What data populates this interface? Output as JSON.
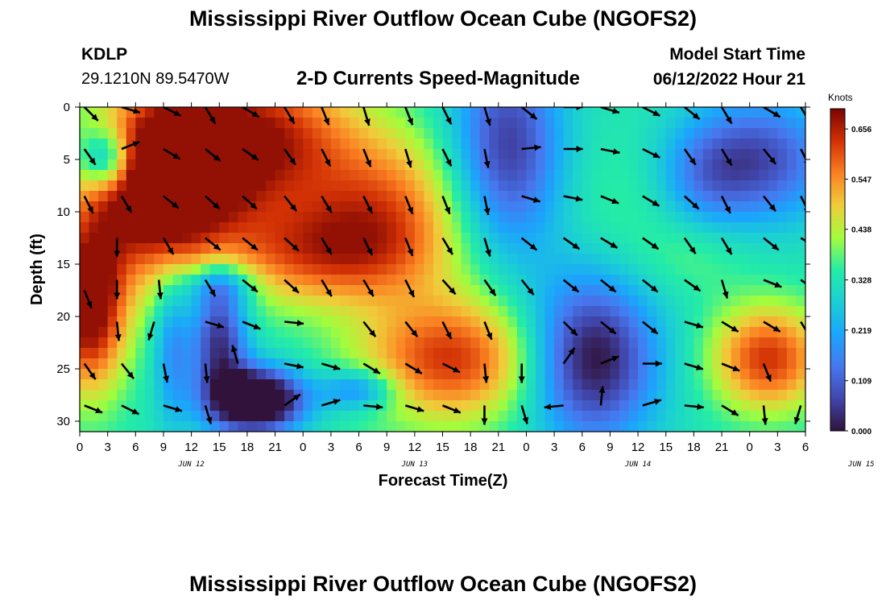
{
  "page": {
    "title": "Mississippi River Outflow Ocean Cube (NGOFS2)",
    "title_repeat": "Mississippi River Outflow Ocean Cube (NGOFS2)"
  },
  "station": {
    "id": "KDLP",
    "coords": "29.1210N  89.5470W"
  },
  "model": {
    "label": "Model Start Time",
    "value": "06/12/2022 Hour 21"
  },
  "chart_data": {
    "type": "heatmap",
    "title": "2-D Currents Speed-Magnitude",
    "xlabel": "Forecast Time(Z)",
    "ylabel": "Depth (ft)",
    "x_ticks": [
      "0",
      "3",
      "6",
      "9",
      "12",
      "15",
      "18",
      "21",
      "0",
      "3",
      "6",
      "9",
      "12",
      "15",
      "18",
      "21",
      "0",
      "3",
      "6",
      "9",
      "12",
      "15",
      "18",
      "21",
      "0",
      "3",
      "6"
    ],
    "date_labels": [
      {
        "label": "JUN 12",
        "x_hours": 12
      },
      {
        "label": "JUN 13",
        "x_hours": 36
      },
      {
        "label": "JUN 14",
        "x_hours": 60
      },
      {
        "label": "JUN 15",
        "x_hours": 84
      }
    ],
    "x_range_hours": [
      0,
      78
    ],
    "y_ticks": [
      "0",
      "5",
      "10",
      "15",
      "20",
      "25",
      "30"
    ],
    "ylim": [
      0,
      31
    ],
    "colorbar": {
      "unit": "Knots",
      "ticks": [
        "0.656",
        "0.547",
        "0.438",
        "0.328",
        "0.219",
        "0.109",
        "0.000"
      ],
      "range": [
        0.0,
        0.7
      ]
    },
    "speed_blobs": [
      {
        "h": 8,
        "d": 9,
        "rh": 8,
        "rd": 8,
        "v": 0.28
      },
      {
        "h": 1,
        "d": 19,
        "rh": 4,
        "rd": 8,
        "v": 0.4
      },
      {
        "h": 10,
        "d": 5,
        "rh": 8,
        "rd": 7,
        "v": 0.3
      },
      {
        "h": 20,
        "d": 3,
        "rh": 10,
        "rd": 7,
        "v": 0.3
      },
      {
        "h": 26,
        "d": 14,
        "rh": 12,
        "rd": 5,
        "v": 0.25
      },
      {
        "h": 40,
        "d": 24,
        "rh": 10,
        "rd": 6,
        "v": 0.3
      },
      {
        "h": 33,
        "d": 9,
        "rh": 9,
        "rd": 7,
        "v": 0.2
      },
      {
        "h": 3,
        "d": 5,
        "rh": 3,
        "rd": 3,
        "v": -0.3
      },
      {
        "h": 15,
        "d": 22,
        "rh": 3,
        "rd": 6,
        "v": -0.3
      },
      {
        "h": 19,
        "d": 28,
        "rh": 5,
        "rd": 3,
        "v": -0.5
      },
      {
        "h": 15,
        "d": 17,
        "rh": 4,
        "rd": 2,
        "v": -0.15
      },
      {
        "h": 10,
        "d": 23,
        "rh": 2,
        "rd": 7,
        "v": -0.15
      },
      {
        "h": 30,
        "d": 27,
        "rh": 4,
        "rd": 2,
        "v": -0.2
      },
      {
        "h": 46,
        "d": 4,
        "rh": 6,
        "rd": 10,
        "v": -0.28
      },
      {
        "h": 55,
        "d": 24,
        "rh": 7,
        "rd": 8,
        "v": -0.35
      },
      {
        "h": 73,
        "d": 5,
        "rh": 8,
        "rd": 6,
        "v": -0.25
      },
      {
        "h": 67,
        "d": 7,
        "rh": 5,
        "rd": 5,
        "v": -0.1
      },
      {
        "h": 58,
        "d": 10,
        "rh": 7,
        "rd": 8,
        "v": 0.04
      },
      {
        "h": 74,
        "d": 24,
        "rh": 6,
        "rd": 5,
        "v": 0.3
      },
      {
        "h": 66,
        "d": 14,
        "rh": 6,
        "rd": 4,
        "v": 0.05
      }
    ],
    "arrows": [
      {
        "h": 0.5,
        "d": 0.0,
        "dx": 1,
        "dy": 1
      },
      {
        "h": 4.5,
        "d": 0.0,
        "dx": 1,
        "dy": 0.3
      },
      {
        "h": 9,
        "d": 0.0,
        "dx": 1,
        "dy": 0.5
      },
      {
        "h": 13.5,
        "d": 0.0,
        "dx": 0.6,
        "dy": 1
      },
      {
        "h": 17.5,
        "d": 0.0,
        "dx": 1,
        "dy": 0.6
      },
      {
        "h": 22,
        "d": 0.0,
        "dx": 0.6,
        "dy": 1
      },
      {
        "h": 26,
        "d": 0.0,
        "dx": 0.4,
        "dy": 1
      },
      {
        "h": 30.5,
        "d": 0.0,
        "dx": 0.3,
        "dy": 1
      },
      {
        "h": 35,
        "d": 0.0,
        "dx": 0.4,
        "dy": 1
      },
      {
        "h": 39,
        "d": 0.0,
        "dx": 0.5,
        "dy": 1
      },
      {
        "h": 43.5,
        "d": 0.0,
        "dx": 0.3,
        "dy": 1
      },
      {
        "h": 47.5,
        "d": 0.0,
        "dx": 1,
        "dy": 0.8
      },
      {
        "h": 52,
        "d": 0.0,
        "dx": 1,
        "dy": 0
      },
      {
        "h": 56,
        "d": 0.0,
        "dx": 1,
        "dy": 0.3
      },
      {
        "h": 60.5,
        "d": 0.0,
        "dx": 1,
        "dy": 0.5
      },
      {
        "h": 65,
        "d": 0.0,
        "dx": 1,
        "dy": 0.8
      },
      {
        "h": 69,
        "d": 0.0,
        "dx": 0.6,
        "dy": 1
      },
      {
        "h": 73.5,
        "d": 0.0,
        "dx": 1,
        "dy": 0.6
      },
      {
        "h": 77.5,
        "d": 0.0,
        "dx": 0.6,
        "dy": 1
      },
      {
        "h": 0.5,
        "d": 4,
        "dx": 0.7,
        "dy": 1
      },
      {
        "h": 4.5,
        "d": 4,
        "dx": 1,
        "dy": -0.4
      },
      {
        "h": 9,
        "d": 4,
        "dx": 1,
        "dy": 0.6
      },
      {
        "h": 13.5,
        "d": 4,
        "dx": 1,
        "dy": 0.8
      },
      {
        "h": 17.5,
        "d": 4,
        "dx": 1,
        "dy": 0.7
      },
      {
        "h": 22,
        "d": 4,
        "dx": 0.7,
        "dy": 1
      },
      {
        "h": 26,
        "d": 4,
        "dx": 0.5,
        "dy": 1
      },
      {
        "h": 30.5,
        "d": 4,
        "dx": 0.4,
        "dy": 1
      },
      {
        "h": 35,
        "d": 4,
        "dx": 0.3,
        "dy": 1
      },
      {
        "h": 39,
        "d": 4,
        "dx": 0.5,
        "dy": 1
      },
      {
        "h": 43.5,
        "d": 4,
        "dx": 0.2,
        "dy": 1
      },
      {
        "h": 47.5,
        "d": 4,
        "dx": 1,
        "dy": -0.1
      },
      {
        "h": 52,
        "d": 4,
        "dx": 1,
        "dy": 0
      },
      {
        "h": 56,
        "d": 4,
        "dx": 1,
        "dy": 0.2
      },
      {
        "h": 60.5,
        "d": 4,
        "dx": 1,
        "dy": 0.5
      },
      {
        "h": 65,
        "d": 4,
        "dx": 0.7,
        "dy": 1
      },
      {
        "h": 69,
        "d": 4,
        "dx": 0.6,
        "dy": 1
      },
      {
        "h": 73.5,
        "d": 4,
        "dx": 0.8,
        "dy": 1
      },
      {
        "h": 77.5,
        "d": 4,
        "dx": 0.5,
        "dy": 1
      },
      {
        "h": 0.5,
        "d": 8.5,
        "dx": 0.5,
        "dy": 1
      },
      {
        "h": 4.5,
        "d": 8.5,
        "dx": 0.6,
        "dy": 1
      },
      {
        "h": 9,
        "d": 8.5,
        "dx": 1,
        "dy": 0.8
      },
      {
        "h": 13.5,
        "d": 8.5,
        "dx": 1,
        "dy": 0.9
      },
      {
        "h": 17.5,
        "d": 8.5,
        "dx": 1,
        "dy": 0.9
      },
      {
        "h": 22,
        "d": 8.5,
        "dx": 0.8,
        "dy": 1
      },
      {
        "h": 26,
        "d": 8.5,
        "dx": 0.6,
        "dy": 1
      },
      {
        "h": 30.5,
        "d": 8.5,
        "dx": 0.5,
        "dy": 1
      },
      {
        "h": 35,
        "d": 8.5,
        "dx": 0.4,
        "dy": 1
      },
      {
        "h": 39,
        "d": 8.5,
        "dx": 0.4,
        "dy": 1
      },
      {
        "h": 43.5,
        "d": 8.5,
        "dx": 0.2,
        "dy": 1
      },
      {
        "h": 47.5,
        "d": 8.5,
        "dx": 1,
        "dy": 0.3
      },
      {
        "h": 52,
        "d": 8.5,
        "dx": 1,
        "dy": 0.2
      },
      {
        "h": 56,
        "d": 8.5,
        "dx": 1,
        "dy": 0.4
      },
      {
        "h": 60.5,
        "d": 8.5,
        "dx": 1,
        "dy": 0.6
      },
      {
        "h": 65,
        "d": 8.5,
        "dx": 1,
        "dy": 0.9
      },
      {
        "h": 69,
        "d": 8.5,
        "dx": 0.5,
        "dy": 1
      },
      {
        "h": 73.5,
        "d": 8.5,
        "dx": 0.8,
        "dy": 1
      },
      {
        "h": 77.5,
        "d": 8.5,
        "dx": 0.5,
        "dy": 1
      },
      {
        "h": 4.0,
        "d": 12.5,
        "dx": 0,
        "dy": 1
      },
      {
        "h": 9,
        "d": 12.5,
        "dx": 0.6,
        "dy": 1
      },
      {
        "h": 13.5,
        "d": 12.5,
        "dx": 1,
        "dy": 0.8
      },
      {
        "h": 17.5,
        "d": 12.5,
        "dx": 1,
        "dy": 0.8
      },
      {
        "h": 22,
        "d": 12.5,
        "dx": 1,
        "dy": 0.9
      },
      {
        "h": 26,
        "d": 12.5,
        "dx": 0.6,
        "dy": 1
      },
      {
        "h": 30.5,
        "d": 12.5,
        "dx": 0.5,
        "dy": 1
      },
      {
        "h": 35,
        "d": 12.5,
        "dx": 0.4,
        "dy": 1
      },
      {
        "h": 39,
        "d": 12.5,
        "dx": 0.6,
        "dy": 1
      },
      {
        "h": 43.5,
        "d": 12.5,
        "dx": 0.3,
        "dy": 1
      },
      {
        "h": 47.5,
        "d": 12.5,
        "dx": 1,
        "dy": 0.8
      },
      {
        "h": 52,
        "d": 12.5,
        "dx": 1,
        "dy": 0.7
      },
      {
        "h": 56,
        "d": 12.5,
        "dx": 1,
        "dy": 0.6
      },
      {
        "h": 60.5,
        "d": 12.5,
        "dx": 1,
        "dy": 0.7
      },
      {
        "h": 65,
        "d": 12.5,
        "dx": 0.7,
        "dy": 1
      },
      {
        "h": 69,
        "d": 12.5,
        "dx": 0.6,
        "dy": 1
      },
      {
        "h": 73.5,
        "d": 12.5,
        "dx": 1,
        "dy": 0.8
      },
      {
        "h": 77.5,
        "d": 12.5,
        "dx": 1,
        "dy": 0.6
      },
      {
        "h": 4.0,
        "d": 16.5,
        "dx": 0,
        "dy": 1
      },
      {
        "h": 8.5,
        "d": 16.5,
        "dx": 0.1,
        "dy": 1
      },
      {
        "h": 13.5,
        "d": 16.5,
        "dx": 0.6,
        "dy": 1
      },
      {
        "h": 17.5,
        "d": 16.5,
        "dx": 1,
        "dy": 0.8
      },
      {
        "h": 22,
        "d": 16.5,
        "dx": 1,
        "dy": 0.9
      },
      {
        "h": 26,
        "d": 16.5,
        "dx": 0.6,
        "dy": 1
      },
      {
        "h": 30.5,
        "d": 16.5,
        "dx": 0.6,
        "dy": 1
      },
      {
        "h": 35,
        "d": 16.5,
        "dx": 0.5,
        "dy": 1
      },
      {
        "h": 39,
        "d": 16.5,
        "dx": 0.9,
        "dy": 1
      },
      {
        "h": 43.5,
        "d": 16.5,
        "dx": 0.7,
        "dy": 1
      },
      {
        "h": 47.5,
        "d": 16.5,
        "dx": 0.8,
        "dy": 1
      },
      {
        "h": 52,
        "d": 16.5,
        "dx": 1,
        "dy": 0.8
      },
      {
        "h": 56,
        "d": 16.5,
        "dx": 1,
        "dy": 0.8
      },
      {
        "h": 60.5,
        "d": 16.5,
        "dx": 1,
        "dy": 0.8
      },
      {
        "h": 65,
        "d": 16.5,
        "dx": 1,
        "dy": 0.7
      },
      {
        "h": 69,
        "d": 16.5,
        "dx": 0.3,
        "dy": 1
      },
      {
        "h": 73.5,
        "d": 16.5,
        "dx": 1,
        "dy": 0.4
      },
      {
        "h": 77.5,
        "d": 16.5,
        "dx": 1,
        "dy": 0.7
      },
      {
        "h": 0.5,
        "d": 17.5,
        "dx": 0.4,
        "dy": 1
      },
      {
        "h": 4.0,
        "d": 20.5,
        "dx": 0.1,
        "dy": 1
      },
      {
        "h": 8.0,
        "d": 20.5,
        "dx": -0.3,
        "dy": 1
      },
      {
        "h": 13.5,
        "d": 20.5,
        "dx": 1,
        "dy": 0.3
      },
      {
        "h": 17.5,
        "d": 20.5,
        "dx": 1,
        "dy": 0.4
      },
      {
        "h": 22,
        "d": 20.5,
        "dx": 1,
        "dy": 0.1
      },
      {
        "h": 30.5,
        "d": 20.5,
        "dx": 0.8,
        "dy": 1
      },
      {
        "h": 35,
        "d": 20.5,
        "dx": 0.8,
        "dy": 1
      },
      {
        "h": 39,
        "d": 20.5,
        "dx": 0.5,
        "dy": 1
      },
      {
        "h": 43.5,
        "d": 20.5,
        "dx": 0.4,
        "dy": 1
      },
      {
        "h": 52,
        "d": 20.5,
        "dx": 1,
        "dy": 1
      },
      {
        "h": 56,
        "d": 20.5,
        "dx": 1,
        "dy": 0.8
      },
      {
        "h": 60.5,
        "d": 20.5,
        "dx": 1,
        "dy": 0.8
      },
      {
        "h": 65,
        "d": 20.5,
        "dx": 1,
        "dy": 0.3
      },
      {
        "h": 69,
        "d": 20.5,
        "dx": 1,
        "dy": 0.6
      },
      {
        "h": 73.5,
        "d": 20.5,
        "dx": 1,
        "dy": 0.6
      },
      {
        "h": 77.5,
        "d": 20.5,
        "dx": 0.6,
        "dy": 1
      },
      {
        "h": 0.5,
        "d": 24.5,
        "dx": 0.7,
        "dy": 1
      },
      {
        "h": 4.5,
        "d": 24.5,
        "dx": 0.8,
        "dy": 1
      },
      {
        "h": 9,
        "d": 24.5,
        "dx": 0.2,
        "dy": 1
      },
      {
        "h": 13.5,
        "d": 24.5,
        "dx": 0.1,
        "dy": 1
      },
      {
        "h": 17.0,
        "d": 24.5,
        "dx": -0.3,
        "dy": -1
      },
      {
        "h": 22,
        "d": 24.5,
        "dx": 1,
        "dy": 0.2
      },
      {
        "h": 26,
        "d": 24.5,
        "dx": 1,
        "dy": 0.3
      },
      {
        "h": 30.5,
        "d": 24.5,
        "dx": 1,
        "dy": 0.6
      },
      {
        "h": 35,
        "d": 24.5,
        "dx": 1,
        "dy": 0.6
      },
      {
        "h": 39,
        "d": 24.5,
        "dx": 1,
        "dy": 0.5
      },
      {
        "h": 43.5,
        "d": 24.5,
        "dx": 0.1,
        "dy": 1
      },
      {
        "h": 47.5,
        "d": 24.5,
        "dx": 0,
        "dy": 1
      },
      {
        "h": 52,
        "d": 24.5,
        "dx": 0.7,
        "dy": -1
      },
      {
        "h": 56,
        "d": 24.5,
        "dx": 1,
        "dy": -0.4
      },
      {
        "h": 60.5,
        "d": 24.5,
        "dx": 1,
        "dy": 0
      },
      {
        "h": 65,
        "d": 24.5,
        "dx": 1,
        "dy": 0.3
      },
      {
        "h": 69,
        "d": 24.5,
        "dx": 1,
        "dy": 0.4
      },
      {
        "h": 73.5,
        "d": 24.5,
        "dx": 0.4,
        "dy": 1
      },
      {
        "h": 0.5,
        "d": 28.5,
        "dx": 1,
        "dy": 0.4
      },
      {
        "h": 4.5,
        "d": 28.5,
        "dx": 1,
        "dy": 0.5
      },
      {
        "h": 9,
        "d": 28.5,
        "dx": 1,
        "dy": 0.3
      },
      {
        "h": 13.5,
        "d": 28.5,
        "dx": 0.3,
        "dy": 1
      },
      {
        "h": 22,
        "d": 28.5,
        "dx": 1,
        "dy": -0.7
      },
      {
        "h": 26,
        "d": 28.5,
        "dx": 1,
        "dy": -0.3
      },
      {
        "h": 30.5,
        "d": 28.5,
        "dx": 1,
        "dy": 0.1
      },
      {
        "h": 35,
        "d": 28.5,
        "dx": 1,
        "dy": 0.3
      },
      {
        "h": 39,
        "d": 28.5,
        "dx": 1,
        "dy": 0.4
      },
      {
        "h": 43.5,
        "d": 28.5,
        "dx": 0,
        "dy": 1
      },
      {
        "h": 47.5,
        "d": 28.5,
        "dx": 0.3,
        "dy": 1
      },
      {
        "h": 52,
        "d": 28.5,
        "dx": -1,
        "dy": 0.1
      },
      {
        "h": 56,
        "d": 28.5,
        "dx": 0.1,
        "dy": -1
      },
      {
        "h": 60.5,
        "d": 28.5,
        "dx": 1,
        "dy": -0.3
      },
      {
        "h": 65,
        "d": 28.5,
        "dx": 1,
        "dy": 0.1
      },
      {
        "h": 69,
        "d": 28.5,
        "dx": 1,
        "dy": 0.6
      },
      {
        "h": 73.5,
        "d": 28.5,
        "dx": 0.1,
        "dy": 1
      },
      {
        "h": 77.5,
        "d": 28.5,
        "dx": -0.3,
        "dy": 1
      }
    ]
  }
}
